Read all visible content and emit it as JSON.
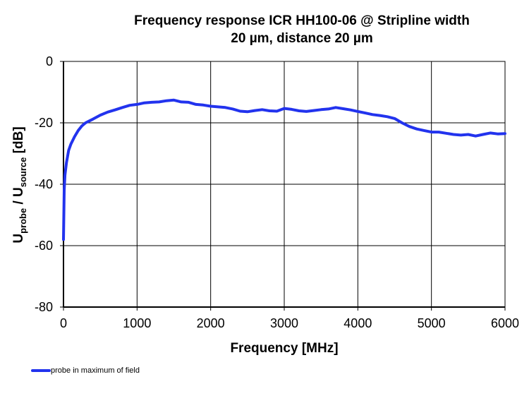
{
  "chart_data": {
    "type": "line",
    "title": [
      "Frequency response ICR HH100-06 @ Stripline  width",
      "20 µm, distance 20 µm"
    ],
    "xlabel": "Frequency [MHz]",
    "ylabel": {
      "main": "U",
      "sub1": "probe",
      "mid": " / U",
      "sub2": "source",
      "tail": " [dB]"
    },
    "xlim": [
      0,
      6000
    ],
    "ylim": [
      -80,
      0
    ],
    "xticks": [
      0,
      1000,
      2000,
      3000,
      4000,
      5000,
      6000
    ],
    "yticks": [
      0,
      -20,
      -40,
      -60,
      -80
    ],
    "grid": true,
    "legend_position": "bottom-left",
    "series_color": "#2233ee",
    "series": [
      {
        "name": "probe in maximum of field",
        "x": [
          0,
          10,
          20,
          40,
          70,
          100,
          150,
          200,
          250,
          300,
          400,
          500,
          600,
          700,
          800,
          900,
          1000,
          1100,
          1200,
          1300,
          1400,
          1500,
          1600,
          1700,
          1800,
          1900,
          2000,
          2100,
          2200,
          2300,
          2400,
          2500,
          2600,
          2700,
          2800,
          2900,
          3000,
          3100,
          3200,
          3300,
          3400,
          3500,
          3600,
          3700,
          3800,
          3900,
          4000,
          4100,
          4200,
          4300,
          4400,
          4500,
          4600,
          4700,
          4800,
          4900,
          5000,
          5100,
          5200,
          5300,
          5400,
          5500,
          5600,
          5700,
          5800,
          5900,
          6000
        ],
        "y": [
          -58,
          -42,
          -37,
          -33,
          -29,
          -27,
          -24.5,
          -22.5,
          -21,
          -20,
          -18.8,
          -17.5,
          -16.5,
          -15.8,
          -15,
          -14.3,
          -14,
          -13.5,
          -13.3,
          -13.2,
          -12.8,
          -12.6,
          -13.2,
          -13.3,
          -14,
          -14.2,
          -14.6,
          -14.8,
          -15,
          -15.5,
          -16.2,
          -16.4,
          -16,
          -15.7,
          -16.1,
          -16.2,
          -15.3,
          -15.6,
          -16.1,
          -16.3,
          -16,
          -15.7,
          -15.5,
          -15,
          -15.4,
          -15.8,
          -16.3,
          -16.8,
          -17.3,
          -17.6,
          -18,
          -18.6,
          -20,
          -21.2,
          -22,
          -22.5,
          -23,
          -23,
          -23.4,
          -23.8,
          -24,
          -23.8,
          -24.3,
          -23.8,
          -23.3,
          -23.6,
          -23.5
        ]
      }
    ]
  }
}
